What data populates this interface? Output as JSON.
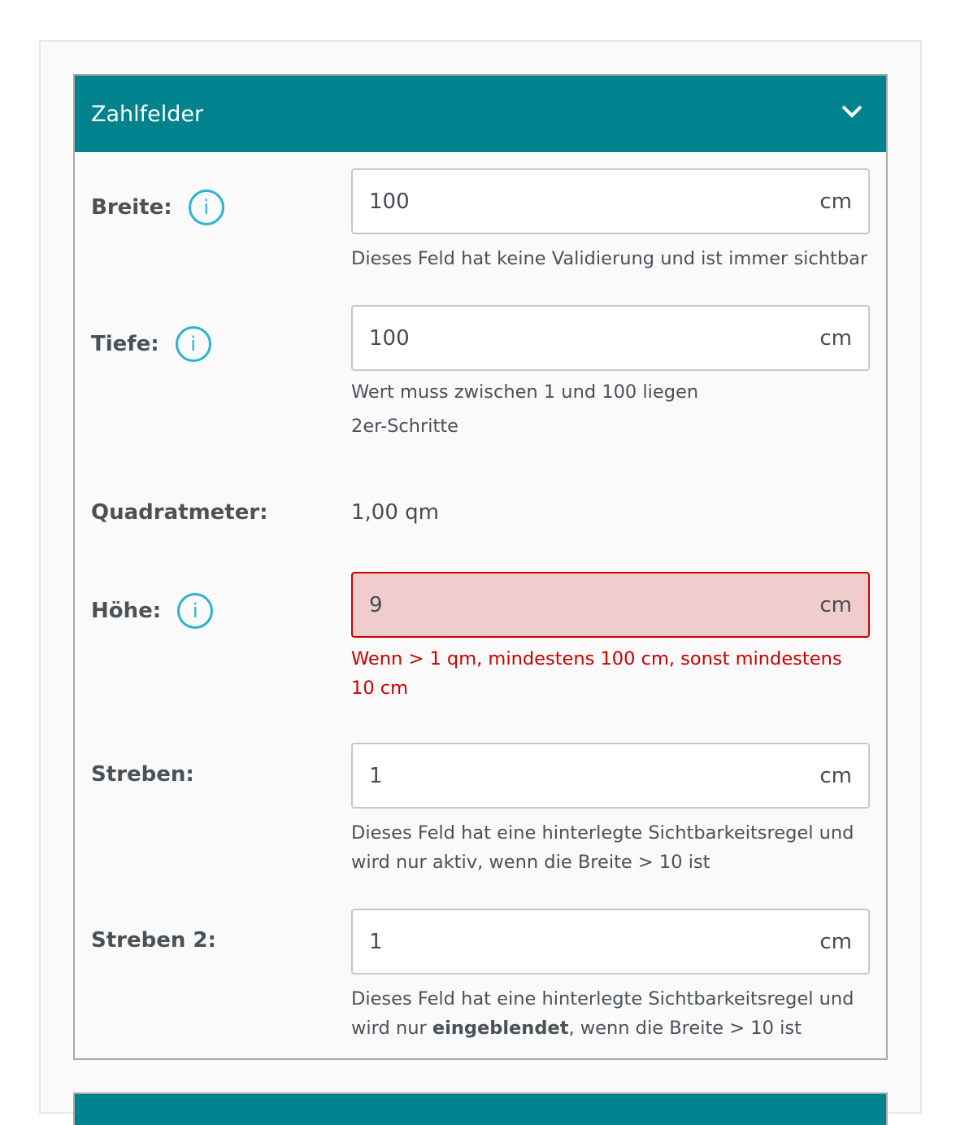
{
  "section": {
    "title": "Zahlfelder",
    "collapse_icon": "chevron-down-icon",
    "color": "#00838f"
  },
  "fields": [
    {
      "label": "Breite:",
      "value": "100",
      "unit": "cm",
      "help": [
        "Dieses Feld hat keine Validierung und ist immer sichtbar"
      ]
    },
    {
      "label": "Tiefe:",
      "value": "100",
      "unit": "cm",
      "help": [
        "Wert muss zwischen 1 und 100 liegen",
        "2er-Schritte"
      ]
    },
    {
      "label": "Quadratmeter:",
      "value": "1,00 qm"
    },
    {
      "label": "Höhe:",
      "value": "9",
      "unit": "cm",
      "error": "Wenn > 1 qm, mindestens 100 cm, sonst mindestens 10 cm",
      "error_color": "#cc0000"
    },
    {
      "label": "Streben:",
      "value": "1",
      "unit": "cm",
      "help": [
        "Dieses Feld hat eine hinterlegte Sichtbarkeitsregel und wird nur aktiv, wenn die Breite > 10 ist"
      ]
    },
    {
      "label": "Streben 2:",
      "value": "1",
      "unit": "cm",
      "help_pre": "Dieses Feld hat eine hinterlegte Sichtbarkeitsregel und wird nur ",
      "help_bold": "eingeblendet",
      "help_post": ", wenn die Breite > 10 ist"
    }
  ],
  "info_icon": "i"
}
